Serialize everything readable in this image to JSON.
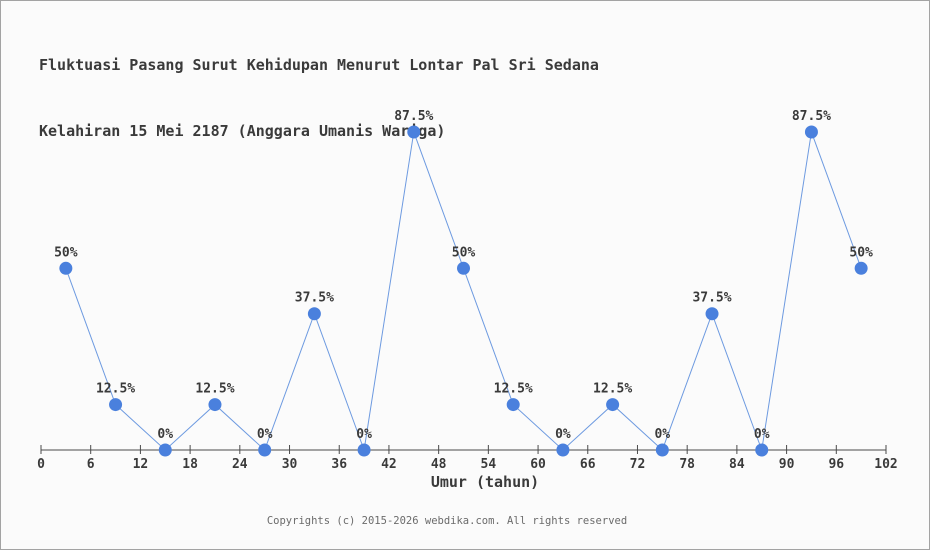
{
  "title": {
    "line1": "Fluktuasi Pasang Surut Kehidupan Menurut Lontar Pal Sri Sedana",
    "line2": "Kelahiran 15 Mei 2187 (Anggara Umanis Wariga)"
  },
  "footer": {
    "text": "Copyrights (c) 2015-2026 webdika.com. All rights reserved"
  },
  "chart_data": {
    "type": "line",
    "x": [
      3,
      9,
      15,
      21,
      27,
      33,
      39,
      45,
      51,
      57,
      63,
      69,
      75,
      81,
      87,
      93,
      99
    ],
    "values": [
      50,
      12.5,
      0,
      12.5,
      0,
      37.5,
      0,
      87.5,
      50,
      12.5,
      0,
      12.5,
      0,
      37.5,
      0,
      87.5,
      50
    ],
    "point_labels": [
      "50%",
      "12.5%",
      "0%",
      "12.5%",
      "0%",
      "37.5%",
      "0%",
      "87.5%",
      "50%",
      "12.5%",
      "0%",
      "12.5%",
      "0%",
      "37.5%",
      "0%",
      "87.5%",
      "50%"
    ],
    "x_ticks": [
      0,
      6,
      12,
      18,
      24,
      30,
      36,
      42,
      48,
      54,
      60,
      66,
      72,
      78,
      84,
      90,
      96,
      102
    ],
    "xlabel": "Umur (tahun)",
    "xlim": [
      0,
      102
    ],
    "ylim": [
      0,
      100
    ],
    "grid": false,
    "legend": false,
    "colors": {
      "background": "#fbfbfb",
      "border": "#a3a3a3",
      "line": "#6d9ae0",
      "marker": "#4a80dd",
      "axis": "#4a4a4a",
      "text": "#3a3a3a",
      "footer_text": "#6b6b6b"
    }
  }
}
